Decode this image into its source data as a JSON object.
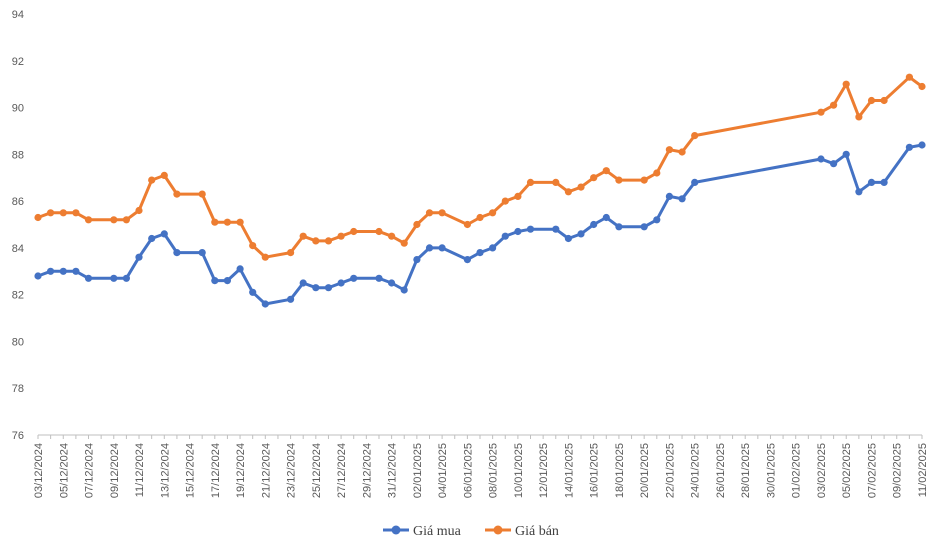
{
  "chart_data": {
    "type": "line",
    "title": "",
    "xlabel": "",
    "ylabel": "",
    "ylim": [
      76,
      94
    ],
    "yticks": [
      "76",
      "78",
      "80",
      "82",
      "84",
      "86",
      "88",
      "90",
      "92",
      "94"
    ],
    "grid": false,
    "legend_position": "bottom",
    "x_labels": [
      "03/12/2024",
      "05/12/2024",
      "07/12/2024",
      "09/12/2024",
      "11/12/2024",
      "13/12/2024",
      "15/12/2024",
      "17/12/2024",
      "19/12/2024",
      "21/12/2024",
      "23/12/2024",
      "25/12/2024",
      "27/12/2024",
      "29/12/2024",
      "31/12/2024",
      "02/01/2025",
      "04/01/2025",
      "06/01/2025",
      "08/01/2025",
      "10/01/2025",
      "12/01/2025",
      "14/01/2025",
      "16/01/2025",
      "18/01/2025",
      "20/01/2025",
      "22/01/2025",
      "24/01/2025",
      "26/01/2025",
      "28/01/2025",
      "30/01/2025",
      "01/02/2025",
      "03/02/2025",
      "05/02/2025",
      "07/02/2025",
      "09/02/2025",
      "11/02/2025"
    ],
    "dates": [
      "03/12/2024",
      "04/12/2024",
      "05/12/2024",
      "06/12/2024",
      "07/12/2024",
      "09/12/2024",
      "10/12/2024",
      "11/12/2024",
      "12/12/2024",
      "13/12/2024",
      "14/12/2024",
      "16/12/2024",
      "17/12/2024",
      "18/12/2024",
      "19/12/2024",
      "20/12/2024",
      "21/12/2024",
      "23/12/2024",
      "24/12/2024",
      "25/12/2024",
      "26/12/2024",
      "27/12/2024",
      "28/12/2024",
      "30/12/2024",
      "31/12/2024",
      "01/01/2025",
      "02/01/2025",
      "03/01/2025",
      "04/01/2025",
      "06/01/2025",
      "07/01/2025",
      "08/01/2025",
      "09/01/2025",
      "10/01/2025",
      "11/01/2025",
      "13/01/2025",
      "14/01/2025",
      "15/01/2025",
      "16/01/2025",
      "17/01/2025",
      "18/01/2025",
      "20/01/2025",
      "21/01/2025",
      "22/01/2025",
      "23/01/2025",
      "24/01/2025",
      "03/02/2025",
      "04/02/2025",
      "05/02/2025",
      "06/02/2025",
      "07/02/2025",
      "08/02/2025",
      "10/02/2025",
      "11/02/2025"
    ],
    "series": [
      {
        "name": "Giá mua",
        "color": "#4472c4",
        "values": [
          82.8,
          83.0,
          83.0,
          83.0,
          82.7,
          82.7,
          82.7,
          83.6,
          84.4,
          84.6,
          83.8,
          83.8,
          82.6,
          82.6,
          83.1,
          82.1,
          81.6,
          81.8,
          82.5,
          82.3,
          82.3,
          82.5,
          82.7,
          82.7,
          82.5,
          82.2,
          83.5,
          84.0,
          84.0,
          83.5,
          83.8,
          84.0,
          84.5,
          84.7,
          84.8,
          84.8,
          84.4,
          84.6,
          85.0,
          85.3,
          84.9,
          84.9,
          85.2,
          86.2,
          86.1,
          86.8,
          87.8,
          87.6,
          88.0,
          86.4,
          86.8,
          86.8,
          88.3,
          88.4
        ]
      },
      {
        "name": "Giá bán",
        "color": "#ed7d31",
        "values": [
          85.3,
          85.5,
          85.5,
          85.5,
          85.2,
          85.2,
          85.2,
          85.6,
          86.9,
          87.1,
          86.3,
          86.3,
          85.1,
          85.1,
          85.1,
          84.1,
          83.6,
          83.8,
          84.5,
          84.3,
          84.3,
          84.5,
          84.7,
          84.7,
          84.5,
          84.2,
          85.0,
          85.5,
          85.5,
          85.0,
          85.3,
          85.5,
          86.0,
          86.2,
          86.8,
          86.8,
          86.4,
          86.6,
          87.0,
          87.3,
          86.9,
          86.9,
          87.2,
          88.2,
          88.1,
          88.8,
          89.8,
          90.1,
          91.0,
          89.6,
          90.3,
          90.3,
          91.3,
          90.9
        ]
      }
    ]
  }
}
